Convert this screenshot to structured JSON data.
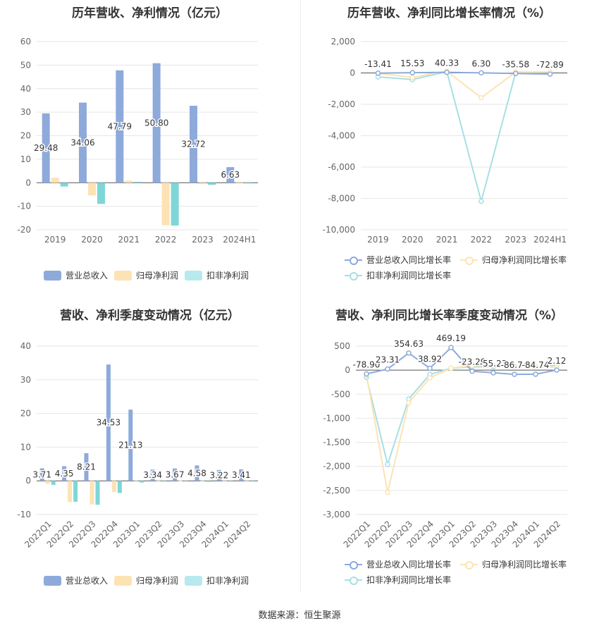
{
  "source": "数据来源：恒生聚源",
  "colors": {
    "revenue": "#8eaadb",
    "net_profit": "#fde3b3",
    "deducted": "#7fd6d6",
    "revenue_line": "#8eaadb",
    "net_line": "#fde3b3",
    "deducted_line": "#a7dfe4"
  },
  "chart_data": [
    {
      "id": "annual",
      "type": "bar",
      "title": "历年营收、净利情况（亿元）",
      "categories": [
        "2019",
        "2020",
        "2021",
        "2022",
        "2023",
        "2024H1"
      ],
      "series": [
        {
          "name": "营业总收入",
          "values": [
            29.48,
            34.06,
            47.79,
            50.8,
            32.72,
            6.63
          ],
          "labels": [
            "29.48",
            "34.06",
            "47.79",
            "50.80",
            "32.72",
            "6.63"
          ]
        },
        {
          "name": "归母净利润",
          "values": [
            2.1,
            -5.4,
            0.9,
            -18.1,
            -0.6,
            -0.2
          ]
        },
        {
          "name": "扣非净利润",
          "values": [
            -1.6,
            -9.0,
            0.4,
            -18.2,
            -0.9,
            -0.2
          ]
        }
      ],
      "ylim": [
        -20,
        60
      ],
      "yticks": [
        "-20",
        "-10",
        "0",
        "10",
        "20",
        "30",
        "40",
        "50",
        "60"
      ],
      "grid": true,
      "legend": "bottom"
    },
    {
      "id": "annual_growth",
      "type": "line",
      "title": "历年营收、净利同比增长率情况（%）",
      "categories": [
        "2019",
        "2020",
        "2021",
        "2022",
        "2023",
        "2024H1"
      ],
      "series": [
        {
          "name": "营业总收入同比增长率",
          "values": [
            -13.41,
            15.53,
            40.33,
            6.3,
            -35.58,
            -72.89
          ],
          "labels": [
            "-13.41",
            "15.53",
            "40.33",
            "6.30",
            "-35.58",
            "-72.89"
          ]
        },
        {
          "name": "归母净利润同比增长率",
          "values": [
            -30,
            -280,
            120,
            -1580,
            60,
            60
          ]
        },
        {
          "name": "扣非净利润同比增长率",
          "values": [
            -250,
            -420,
            80,
            -8180,
            30,
            40
          ]
        }
      ],
      "ylim": [
        -10000,
        2000
      ],
      "yticks": [
        "-10,000",
        "-8,000",
        "-6,000",
        "-4,000",
        "-2,000",
        "0",
        "2,000"
      ],
      "grid": true,
      "legend": "bottom"
    },
    {
      "id": "quarterly",
      "type": "bar",
      "title": "营收、净利季度变动情况（亿元）",
      "categories": [
        "2022Q1",
        "2022Q2",
        "2022Q3",
        "2022Q4",
        "2023Q1",
        "2023Q2",
        "2023Q3",
        "2023Q4",
        "2024Q1",
        "2024Q2"
      ],
      "series": [
        {
          "name": "营业总收入",
          "values": [
            3.71,
            4.35,
            8.21,
            34.53,
            21.13,
            3.34,
            3.67,
            4.58,
            3.22,
            3.41
          ],
          "labels": [
            "3.71",
            "4.35",
            "8.21",
            "34.53",
            "21.13",
            "3.34",
            "3.67",
            "4.58",
            "3.22",
            "3.41"
          ]
        },
        {
          "name": "归母净利润",
          "values": [
            -0.9,
            -6.3,
            -7.0,
            -3.3,
            -0.3,
            -0.1,
            0.1,
            -0.2,
            -0.1,
            -0.1
          ]
        },
        {
          "name": "扣非净利润",
          "values": [
            -1.2,
            -6.2,
            -7.1,
            -3.6,
            -0.5,
            -0.1,
            0.0,
            -0.3,
            -0.1,
            -0.1
          ]
        }
      ],
      "ylim": [
        -10,
        40
      ],
      "yticks": [
        "-10",
        "0",
        "10",
        "20",
        "30",
        "40"
      ],
      "grid": true,
      "legend": "bottom"
    },
    {
      "id": "quarterly_growth",
      "type": "line",
      "title": "营收、净利同比增长率季度变动情况（%）",
      "categories": [
        "2022Q1",
        "2022Q2",
        "2022Q3",
        "2022Q4",
        "2023Q1",
        "2023Q2",
        "2023Q3",
        "2023Q4",
        "2024Q1",
        "2024Q2"
      ],
      "series": [
        {
          "name": "营业总收入同比增长率",
          "values": [
            -78.9,
            23.31,
            354.63,
            38.92,
            469.19,
            -23.29,
            -55.23,
            -86.74,
            -84.74,
            2.12
          ],
          "labels": [
            "-78.90",
            "23.31",
            "354.63",
            "38.92",
            "469.19",
            "-23.29",
            "-55.23",
            "-86.74",
            "-84.74",
            "2.12"
          ]
        },
        {
          "name": "归母净利润同比增长率",
          "values": [
            -90,
            -2540,
            -680,
            -160,
            40,
            90,
            90,
            80,
            70,
            60
          ]
        },
        {
          "name": "扣非净利润同比增长率",
          "values": [
            -150,
            -1960,
            -600,
            -90,
            40,
            70,
            70,
            80,
            70,
            100
          ]
        }
      ],
      "ylim": [
        -3000,
        500
      ],
      "yticks": [
        "-3,000",
        "-2,500",
        "-2,000",
        "-1,500",
        "-1,000",
        "-500",
        "0",
        "500"
      ],
      "grid": true,
      "legend": "bottom"
    }
  ]
}
